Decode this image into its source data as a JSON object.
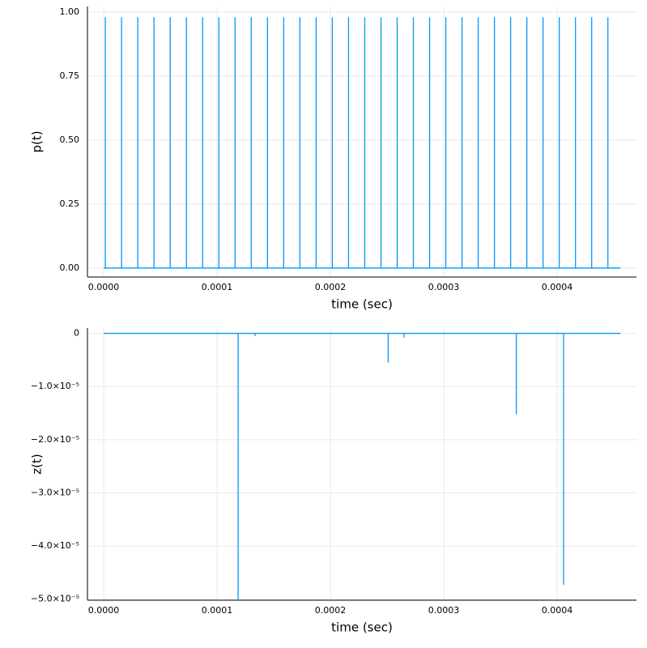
{
  "chart_data": [
    {
      "type": "line",
      "xlabel": "time (sec)",
      "ylabel": "p(t)",
      "color": "#009af9",
      "grid": true,
      "x": [
        0,
        1.5e-06,
        1.5e-06,
        1.5e-06,
        1.58e-05,
        1.58e-05,
        1.58e-05,
        3.01e-05,
        3.01e-05,
        3.01e-05,
        4.44e-05,
        4.44e-05,
        4.44e-05,
        5.87e-05,
        5.87e-05,
        5.87e-05,
        7.3e-05,
        7.3e-05,
        7.3e-05,
        8.73e-05,
        8.73e-05,
        8.73e-05,
        0.0001016,
        0.0001016,
        0.0001016,
        0.0001159,
        0.0001159,
        0.0001159,
        0.0001302,
        0.0001302,
        0.0001302,
        0.0001445,
        0.0001445,
        0.0001445,
        0.0001588,
        0.0001588,
        0.0001588,
        0.0001731,
        0.0001731,
        0.0001731,
        0.0001874,
        0.0001874,
        0.0001874,
        0.0002017,
        0.0002017,
        0.0002017,
        0.000216,
        0.000216,
        0.000216,
        0.0002303,
        0.0002303,
        0.0002303,
        0.0002446,
        0.0002446,
        0.0002446,
        0.0002589,
        0.0002589,
        0.0002589,
        0.0002732,
        0.0002732,
        0.0002732,
        0.0002875,
        0.0002875,
        0.0002875,
        0.0003018,
        0.0003018,
        0.0003018,
        0.0003161,
        0.0003161,
        0.0003161,
        0.0003304,
        0.0003304,
        0.0003304,
        0.0003447,
        0.0003447,
        0.0003447,
        0.000359,
        0.000359,
        0.000359,
        0.0003733,
        0.0003733,
        0.0003733,
        0.0003876,
        0.0003876,
        0.0003876,
        0.0004019,
        0.0004019,
        0.0004019,
        0.0004162,
        0.0004162,
        0.0004162,
        0.0004305,
        0.0004305,
        0.0004305,
        0.0004448,
        0.0004448,
        0.0004448,
        0.000456
      ],
      "values": [
        0,
        0,
        0.98,
        0,
        0,
        0.98,
        0,
        0,
        0.98,
        0,
        0,
        0.98,
        0,
        0,
        0.98,
        0,
        0,
        0.98,
        0,
        0,
        0.98,
        0,
        0,
        0.98,
        0,
        0,
        0.98,
        0,
        0,
        0.98,
        0,
        0,
        0.98,
        0,
        0,
        0.98,
        0,
        0,
        0.98,
        0,
        0,
        0.98,
        0,
        0,
        0.98,
        0,
        0,
        0.98,
        0,
        0,
        0.98,
        0,
        0,
        0.98,
        0,
        0,
        0.98,
        0,
        0,
        0.98,
        0,
        0,
        0.98,
        0,
        0,
        0.98,
        0,
        0,
        0.98,
        0,
        0,
        0.98,
        0,
        0,
        0.98,
        0,
        0,
        0.98,
        0,
        0,
        0.98,
        0,
        0,
        0.98,
        0,
        0,
        0.98,
        0,
        0,
        0.98,
        0,
        0,
        0.98,
        0,
        0,
        0.98,
        0,
        0
      ],
      "xlim": [
        -1.43e-05,
        0.00047
      ],
      "xticks": [
        {
          "value": 0,
          "label": "0.0000"
        },
        {
          "value": 0.0001,
          "label": "0.0001"
        },
        {
          "value": 0.0002,
          "label": "0.0002"
        },
        {
          "value": 0.0003,
          "label": "0.0003"
        },
        {
          "value": 0.0004,
          "label": "0.0004"
        }
      ],
      "ylim": [
        -0.035,
        1.022
      ],
      "yticks": [
        {
          "value": 0,
          "label": "0.00"
        },
        {
          "value": 0.25,
          "label": "0.25"
        },
        {
          "value": 0.5,
          "label": "0.50"
        },
        {
          "value": 0.75,
          "label": "0.75"
        },
        {
          "value": 1,
          "label": "1.00"
        }
      ]
    },
    {
      "type": "line",
      "xlabel": "time (sec)",
      "ylabel": "z(t)",
      "color": "#009af9",
      "grid": true,
      "x": [
        0,
        0.0001186,
        0.0001186,
        0.0001186,
        0.0001336,
        0.0001336,
        0.0001336,
        0.000251,
        0.000251,
        0.000251,
        0.000265,
        0.000265,
        0.000265,
        0.000364,
        0.000364,
        0.000364,
        0.0004057,
        0.0004057,
        0.0004057,
        0.000456
      ],
      "values": [
        0,
        0,
        -5.02e-05,
        0,
        0,
        -5e-07,
        0,
        0,
        -5.5e-06,
        0,
        0,
        -8e-07,
        0,
        0,
        -1.52e-05,
        0,
        0,
        -4.73e-05,
        0,
        0
      ],
      "xlim": [
        -1.43e-05,
        0.00047
      ],
      "xticks": [
        {
          "value": 0,
          "label": "0.0000"
        },
        {
          "value": 0.0001,
          "label": "0.0001"
        },
        {
          "value": 0.0002,
          "label": "0.0002"
        },
        {
          "value": 0.0003,
          "label": "0.0003"
        },
        {
          "value": 0.0004,
          "label": "0.0004"
        }
      ],
      "ylim": [
        -5.02e-05,
        1e-06
      ],
      "yticks": [
        0,
        {
          "value": -1e-05,
          "label": "−1.0×10⁻⁵"
        },
        {
          "value": -2e-05,
          "label": "−2.0×10⁻⁵"
        },
        {
          "value": -3e-05,
          "label": "−3.0×10⁻⁵"
        },
        {
          "value": -4e-05,
          "label": "−4.0×10⁻⁵"
        },
        {
          "value": -5e-05,
          "label": "−5.0×10⁻⁵"
        }
      ]
    }
  ]
}
